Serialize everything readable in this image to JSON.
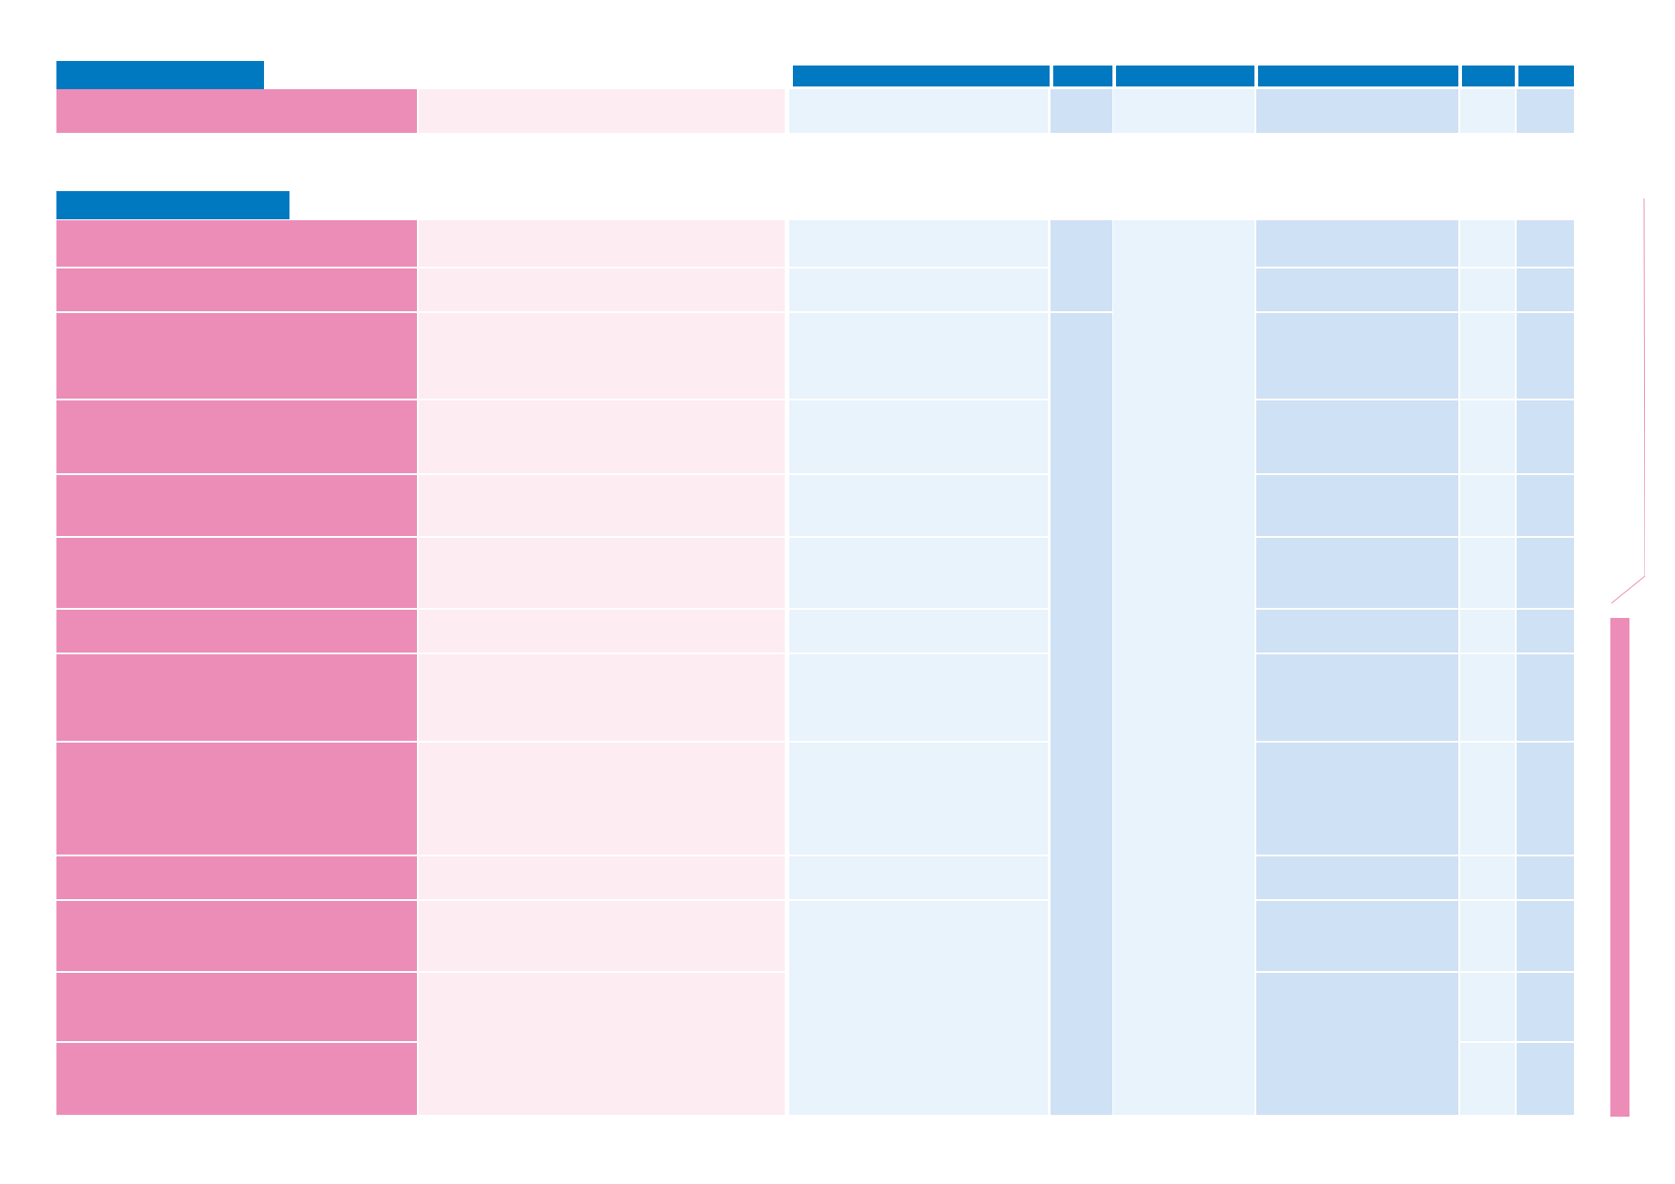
{
  "sections": [
    {
      "tab_label": ""
    },
    {
      "tab_label": ""
    }
  ],
  "column_headers": [
    "",
    "",
    "",
    "",
    "",
    ""
  ],
  "side_bar_label": "",
  "colors": {
    "header_blue": "#0079c1",
    "pink_dark": "#ec8db7",
    "pink_light": "#fdecf2",
    "blue_light": "#e8f3fc",
    "blue_mid": "#cfe1f4"
  }
}
